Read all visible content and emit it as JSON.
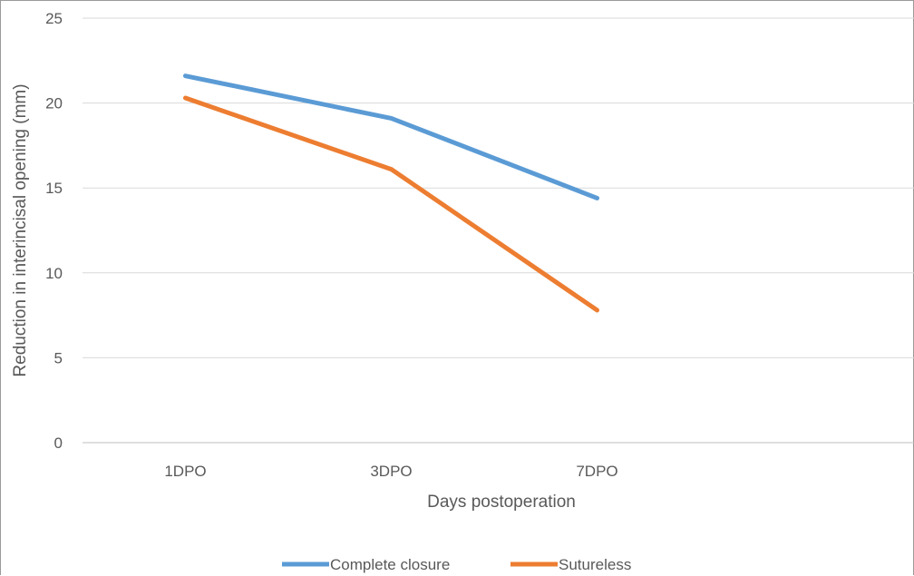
{
  "chart_data": {
    "type": "line",
    "title": "",
    "xlabel": "Days postoperation",
    "ylabel": "Reduction in interincisal opening (mm)",
    "categories": [
      "1DPO",
      "3DPO",
      "7DPO"
    ],
    "ylim": [
      0,
      25
    ],
    "yticks": [
      "0",
      "5",
      "10",
      "15",
      "20",
      "25"
    ],
    "grid": true,
    "legend_position": "bottom",
    "series": [
      {
        "name": "Complete closure",
        "values": [
          21.6,
          19.1,
          14.4
        ],
        "color": "#5b9bd5"
      },
      {
        "name": "Sutureless",
        "values": [
          20.3,
          16.1,
          7.8
        ],
        "color": "#ed7d31"
      }
    ]
  }
}
